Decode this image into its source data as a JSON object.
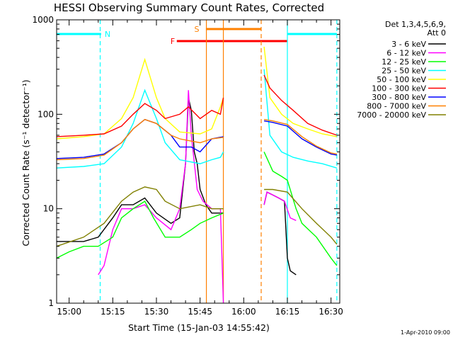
{
  "chart_data": {
    "type": "line",
    "title": "HESSI Observing Summary Count Rates, Corrected",
    "xlabel": "Start Time (15-Jan-03 14:55:42)",
    "ylabel": "Corrected Count Rate (s⁻¹ detector⁻¹)",
    "yscale": "log",
    "ylim": [
      1,
      1000
    ],
    "xlim": [
      "14:55:42",
      "16:33:00"
    ],
    "x_ticks": [
      "15:00",
      "15:15",
      "15:30",
      "15:45",
      "16:00",
      "16:15",
      "16:30"
    ],
    "y_ticks": [
      "1",
      "10",
      "100",
      "1000"
    ],
    "grid": false,
    "legend_position": "right",
    "legend_header": [
      "Det 1,3,4,5,6,9,",
      "Att 0"
    ],
    "footer": "1-Apr-2010 09:00",
    "flag_bars": [
      {
        "label": "N",
        "color": "#00ffff",
        "segments": [
          [
            "14:55:42",
            "15:11:00"
          ],
          [
            "16:15:00",
            "16:32:00"
          ]
        ]
      },
      {
        "label": "S",
        "color": "#ff8000",
        "segments": [
          [
            "15:47:00",
            "16:06:00"
          ]
        ]
      },
      {
        "label": "F",
        "color": "#ff0000",
        "segments": [
          [
            "15:37:00",
            "16:15:00"
          ]
        ]
      }
    ],
    "vertical_markers": [
      {
        "time": "15:10:40",
        "color": "#00ffff",
        "style": "dashed"
      },
      {
        "time": "15:47:10",
        "color": "#ff8000",
        "style": "solid"
      },
      {
        "time": "15:53:00",
        "color": "#ff8000",
        "style": "solid"
      },
      {
        "time": "16:06:00",
        "color": "#ff8000",
        "style": "dashed"
      },
      {
        "time": "16:15:00",
        "color": "#00ffff",
        "style": "solid"
      },
      {
        "time": "16:32:00",
        "color": "#00ffff",
        "style": "dashed"
      }
    ],
    "series": [
      {
        "name": "3 - 6 keV",
        "color": "#000000",
        "segments": [
          [
            [
              "14:55:42",
              4.5
            ],
            [
              "15:05:00",
              4.5
            ],
            [
              "15:10:00",
              5
            ],
            [
              "15:15:00",
              8
            ],
            [
              "15:18:00",
              11
            ],
            [
              "15:22:00",
              11
            ],
            [
              "15:26:00",
              13
            ],
            [
              "15:30:00",
              9
            ],
            [
              "15:35:00",
              7
            ],
            [
              "15:38:00",
              8
            ],
            [
              "15:40:00",
              30
            ],
            [
              "15:41:00",
              150
            ],
            [
              "15:42:00",
              110
            ],
            [
              "15:43:00",
              40
            ],
            [
              "15:44:00",
              30
            ],
            [
              "15:45:00",
              16
            ],
            [
              "15:47:00",
              11
            ],
            [
              "15:49:00",
              9
            ],
            [
              "15:53:00",
              9
            ]
          ],
          [
            [
              "16:07:00",
              11
            ],
            [
              "16:08:00",
              15
            ],
            [
              "16:10:00",
              14
            ],
            [
              "16:12:00",
              13
            ],
            [
              "16:14:00",
              12
            ],
            [
              "16:15:00",
              3
            ],
            [
              "16:16:00",
              2.2
            ],
            [
              "16:18:00",
              2
            ]
          ]
        ]
      },
      {
        "name": "6 - 12 keV",
        "color": "#ff00ff",
        "segments": [
          [
            [
              "15:10:00",
              2
            ],
            [
              "15:12:00",
              2.5
            ],
            [
              "15:15:00",
              6
            ],
            [
              "15:18:00",
              10
            ],
            [
              "15:22:00",
              10
            ],
            [
              "15:26:00",
              11
            ],
            [
              "15:30:00",
              8
            ],
            [
              "15:35:00",
              6
            ],
            [
              "15:38:00",
              10
            ],
            [
              "15:40:00",
              30
            ],
            [
              "15:41:00",
              180
            ],
            [
              "15:42:00",
              60
            ],
            [
              "15:44:00",
              16
            ],
            [
              "15:46:00",
              12
            ],
            [
              "15:49:00",
              10
            ],
            [
              "15:52:00",
              10
            ],
            [
              "15:53:00",
              1
            ]
          ],
          [
            [
              "16:07:00",
              11
            ],
            [
              "16:08:00",
              15
            ],
            [
              "16:10:00",
              14
            ],
            [
              "16:12:00",
              13
            ],
            [
              "16:14:00",
              12
            ],
            [
              "16:16:00",
              8
            ],
            [
              "16:18:00",
              7.5
            ]
          ]
        ]
      },
      {
        "name": "12 - 25 keV",
        "color": "#00ff00",
        "segments": [
          [
            [
              "14:55:42",
              3
            ],
            [
              "15:00:00",
              3.5
            ],
            [
              "15:05:00",
              4
            ],
            [
              "15:10:00",
              4
            ],
            [
              "15:15:00",
              5
            ],
            [
              "15:18:00",
              8
            ],
            [
              "15:22:00",
              10
            ],
            [
              "15:26:00",
              12
            ],
            [
              "15:29:00",
              8
            ],
            [
              "15:33:00",
              5
            ],
            [
              "15:38:00",
              5
            ],
            [
              "15:42:00",
              6
            ],
            [
              "15:45:00",
              7
            ],
            [
              "15:49:00",
              8
            ],
            [
              "15:53:00",
              9
            ]
          ],
          [
            [
              "16:07:00",
              40
            ],
            [
              "16:10:00",
              25
            ],
            [
              "16:13:00",
              22
            ],
            [
              "16:15:00",
              20
            ],
            [
              "16:18:00",
              10
            ],
            [
              "16:20:00",
              7
            ],
            [
              "16:25:00",
              5
            ],
            [
              "16:30:00",
              3
            ],
            [
              "16:32:00",
              2.5
            ]
          ]
        ]
      },
      {
        "name": "25 - 50 keV",
        "color": "#00ffff",
        "segments": [
          [
            [
              "14:55:42",
              27
            ],
            [
              "15:05:00",
              28
            ],
            [
              "15:12:00",
              30
            ],
            [
              "15:18:00",
              45
            ],
            [
              "15:22:00",
              80
            ],
            [
              "15:26:00",
              180
            ],
            [
              "15:30:00",
              90
            ],
            [
              "15:33:00",
              50
            ],
            [
              "15:38:00",
              33
            ],
            [
              "15:45:00",
              30
            ],
            [
              "15:49:00",
              33
            ],
            [
              "15:52:00",
              35
            ],
            [
              "15:53:00",
              40
            ]
          ],
          [
            [
              "16:07:00",
              300
            ],
            [
              "16:09:00",
              60
            ],
            [
              "16:13:00",
              40
            ],
            [
              "16:17:00",
              35
            ],
            [
              "16:22:00",
              32
            ],
            [
              "16:27:00",
              30
            ],
            [
              "16:32:00",
              27
            ]
          ]
        ]
      },
      {
        "name": "50 - 100 keV",
        "color": "#ffff00",
        "segments": [
          [
            [
              "14:55:42",
              55
            ],
            [
              "15:05:00",
              58
            ],
            [
              "15:12:00",
              62
            ],
            [
              "15:18:00",
              90
            ],
            [
              "15:22:00",
              150
            ],
            [
              "15:26:00",
              380
            ],
            [
              "15:30:00",
              150
            ],
            [
              "15:33:00",
              90
            ],
            [
              "15:38:00",
              65
            ],
            [
              "15:45:00",
              62
            ],
            [
              "15:49:00",
              70
            ],
            [
              "15:52:00",
              120
            ],
            [
              "15:53:00",
              150
            ]
          ],
          [
            [
              "16:07:00",
              520
            ],
            [
              "16:09:00",
              150
            ],
            [
              "16:13:00",
              100
            ],
            [
              "16:17:00",
              80
            ],
            [
              "16:22:00",
              70
            ],
            [
              "16:27:00",
              62
            ],
            [
              "16:32:00",
              58
            ]
          ]
        ]
      },
      {
        "name": "100 - 300 keV",
        "color": "#ff0000",
        "segments": [
          [
            [
              "14:55:42",
              58
            ],
            [
              "15:05:00",
              60
            ],
            [
              "15:12:00",
              62
            ],
            [
              "15:18:00",
              75
            ],
            [
              "15:22:00",
              100
            ],
            [
              "15:26:00",
              130
            ],
            [
              "15:30:00",
              110
            ],
            [
              "15:33:00",
              90
            ],
            [
              "15:38:00",
              100
            ],
            [
              "15:41:00",
              120
            ],
            [
              "15:45:00",
              90
            ],
            [
              "15:49:00",
              110
            ],
            [
              "15:52:00",
              100
            ],
            [
              "15:53:00",
              150
            ]
          ],
          [
            [
              "16:07:00",
              260
            ],
            [
              "16:09:00",
              190
            ],
            [
              "16:13:00",
              140
            ],
            [
              "16:17:00",
              110
            ],
            [
              "16:22:00",
              80
            ],
            [
              "16:27:00",
              68
            ],
            [
              "16:32:00",
              60
            ]
          ]
        ]
      },
      {
        "name": "300 - 800 keV",
        "color": "#0000ff",
        "segments": [
          [
            [
              "14:55:42",
              34
            ],
            [
              "15:05:00",
              35
            ],
            [
              "15:12:00",
              38
            ],
            [
              "15:18:00",
              50
            ],
            [
              "15:22:00",
              70
            ],
            [
              "15:26:00",
              88
            ],
            [
              "15:30:00",
              80
            ],
            [
              "15:35:00",
              60
            ],
            [
              "15:38:00",
              45
            ],
            [
              "15:42:00",
              45
            ],
            [
              "15:45:00",
              40
            ],
            [
              "15:49:00",
              55
            ],
            [
              "15:53:00",
              58
            ]
          ],
          [
            [
              "16:07:00",
              85
            ],
            [
              "16:10:00",
              82
            ],
            [
              "16:15:00",
              75
            ],
            [
              "16:20:00",
              55
            ],
            [
              "16:25:00",
              45
            ],
            [
              "16:30:00",
              38
            ],
            [
              "16:32:00",
              37
            ]
          ]
        ]
      },
      {
        "name": "800 - 7000 keV",
        "color": "#ff8000",
        "segments": [
          [
            [
              "14:55:42",
              33
            ],
            [
              "15:05:00",
              34
            ],
            [
              "15:12:00",
              37
            ],
            [
              "15:18:00",
              50
            ],
            [
              "15:22:00",
              70
            ],
            [
              "15:26:00",
              88
            ],
            [
              "15:30:00",
              80
            ],
            [
              "15:35:00",
              60
            ],
            [
              "15:38:00",
              55
            ],
            [
              "15:42:00",
              52
            ],
            [
              "15:45:00",
              50
            ],
            [
              "15:49:00",
              55
            ],
            [
              "15:53:00",
              57
            ]
          ],
          [
            [
              "16:07:00",
              88
            ],
            [
              "16:10:00",
              85
            ],
            [
              "16:15:00",
              78
            ],
            [
              "16:20:00",
              58
            ],
            [
              "16:25:00",
              46
            ],
            [
              "16:30:00",
              39
            ],
            [
              "16:32:00",
              38
            ]
          ]
        ]
      },
      {
        "name": "7000 - 20000 keV",
        "color": "#808000",
        "segments": [
          [
            [
              "14:55:42",
              4
            ],
            [
              "15:05:00",
              5
            ],
            [
              "15:12:00",
              7
            ],
            [
              "15:18:00",
              12
            ],
            [
              "15:22:00",
              15
            ],
            [
              "15:26:00",
              17
            ],
            [
              "15:30:00",
              16
            ],
            [
              "15:33:00",
              12
            ],
            [
              "15:38:00",
              10
            ],
            [
              "15:45:00",
              11
            ],
            [
              "15:49:00",
              10
            ],
            [
              "15:53:00",
              10
            ]
          ],
          [
            [
              "16:07:00",
              16
            ],
            [
              "16:10:00",
              16
            ],
            [
              "16:15:00",
              15
            ],
            [
              "16:20:00",
              10
            ],
            [
              "16:25:00",
              7
            ],
            [
              "16:30:00",
              5
            ],
            [
              "16:32:00",
              4.2
            ]
          ]
        ]
      }
    ]
  }
}
